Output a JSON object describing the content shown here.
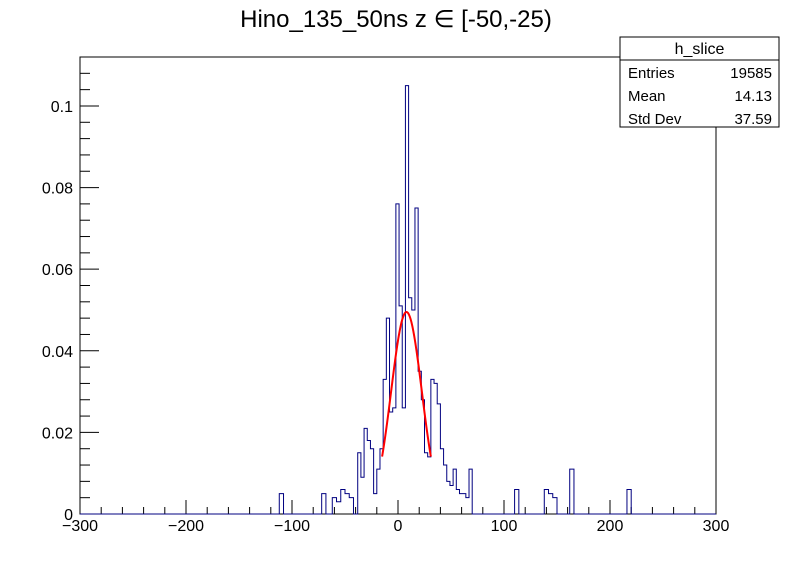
{
  "chart_data": {
    "type": "histogram",
    "title": "Hino_135_50ns z  ∈ [-50,-25)",
    "xlabel": "",
    "ylabel": "",
    "xlim": [
      -300,
      300
    ],
    "ylim": [
      0,
      0.112
    ],
    "x_ticks": [
      "−300",
      "−200",
      "−100",
      "0",
      "100",
      "200",
      "300"
    ],
    "x_tick_values": [
      -300,
      -200,
      -100,
      0,
      100,
      200,
      300
    ],
    "y_ticks": [
      "0",
      "0.02",
      "0.04",
      "0.06",
      "0.08",
      "0.1"
    ],
    "y_tick_values": [
      0,
      0.02,
      0.04,
      0.06,
      0.08,
      0.1
    ],
    "line_color": "#000080",
    "fit_color": "#ff0000",
    "bins": [
      {
        "x0": -112,
        "x1": -108,
        "y": 0.005
      },
      {
        "x0": -72,
        "x1": -68,
        "y": 0.005
      },
      {
        "x0": -62,
        "x1": -58,
        "y": 0.004
      },
      {
        "x0": -58,
        "x1": -54,
        "y": 0.003
      },
      {
        "x0": -54,
        "x1": -50,
        "y": 0.006
      },
      {
        "x0": -50,
        "x1": -46,
        "y": 0.005
      },
      {
        "x0": -46,
        "x1": -42,
        "y": 0.004
      },
      {
        "x0": -38,
        "x1": -35,
        "y": 0.015
      },
      {
        "x0": -35,
        "x1": -32,
        "y": 0.009
      },
      {
        "x0": -32,
        "x1": -29,
        "y": 0.021
      },
      {
        "x0": -29,
        "x1": -26,
        "y": 0.018
      },
      {
        "x0": -26,
        "x1": -23,
        "y": 0.016
      },
      {
        "x0": -23,
        "x1": -20,
        "y": 0.005
      },
      {
        "x0": -20,
        "x1": -17,
        "y": 0.011
      },
      {
        "x0": -17,
        "x1": -14,
        "y": 0.016
      },
      {
        "x0": -14,
        "x1": -11,
        "y": 0.033
      },
      {
        "x0": -11,
        "x1": -8,
        "y": 0.048
      },
      {
        "x0": -8,
        "x1": -5,
        "y": 0.025
      },
      {
        "x0": -5,
        "x1": -2,
        "y": 0.026
      },
      {
        "x0": -2,
        "x1": 1,
        "y": 0.076
      },
      {
        "x0": 1,
        "x1": 4,
        "y": 0.051
      },
      {
        "x0": 4,
        "x1": 7,
        "y": 0.026
      },
      {
        "x0": 7,
        "x1": 10,
        "y": 0.105
      },
      {
        "x0": 10,
        "x1": 13,
        "y": 0.053
      },
      {
        "x0": 13,
        "x1": 16,
        "y": 0.05
      },
      {
        "x0": 16,
        "x1": 19,
        "y": 0.075
      },
      {
        "x0": 19,
        "x1": 22,
        "y": 0.035
      },
      {
        "x0": 22,
        "x1": 25,
        "y": 0.028
      },
      {
        "x0": 25,
        "x1": 28,
        "y": 0.015
      },
      {
        "x0": 28,
        "x1": 31,
        "y": 0.014
      },
      {
        "x0": 31,
        "x1": 34,
        "y": 0.033
      },
      {
        "x0": 34,
        "x1": 37,
        "y": 0.032
      },
      {
        "x0": 37,
        "x1": 40,
        "y": 0.027
      },
      {
        "x0": 40,
        "x1": 43,
        "y": 0.016
      },
      {
        "x0": 43,
        "x1": 46,
        "y": 0.012
      },
      {
        "x0": 46,
        "x1": 49,
        "y": 0.008
      },
      {
        "x0": 49,
        "x1": 52,
        "y": 0.007
      },
      {
        "x0": 52,
        "x1": 55,
        "y": 0.011
      },
      {
        "x0": 55,
        "x1": 58,
        "y": 0.006
      },
      {
        "x0": 58,
        "x1": 61,
        "y": 0.005
      },
      {
        "x0": 61,
        "x1": 64,
        "y": 0.005
      },
      {
        "x0": 64,
        "x1": 67,
        "y": 0.004
      },
      {
        "x0": 67,
        "x1": 70,
        "y": 0.011
      },
      {
        "x0": 110,
        "x1": 114,
        "y": 0.006
      },
      {
        "x0": 138,
        "x1": 142,
        "y": 0.006
      },
      {
        "x0": 142,
        "x1": 146,
        "y": 0.005
      },
      {
        "x0": 146,
        "x1": 150,
        "y": 0.004
      },
      {
        "x0": 162,
        "x1": 166,
        "y": 0.011
      },
      {
        "x0": 216,
        "x1": 220,
        "y": 0.006
      }
    ],
    "fit": {
      "type": "gaussian",
      "amplitude": 0.0495,
      "mean": 8,
      "sigma": 14.5,
      "range": [
        -15,
        31
      ]
    }
  },
  "stats_box": {
    "title": "h_slice",
    "rows": [
      {
        "label": "Entries",
        "value": "19585"
      },
      {
        "label": "Mean",
        "value": "14.13"
      },
      {
        "label": "Std Dev",
        "value": "37.59"
      }
    ]
  }
}
